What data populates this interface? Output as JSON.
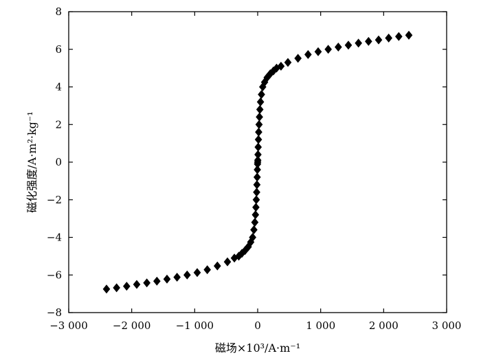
{
  "chart_data": {
    "type": "scatter",
    "title": "",
    "xlabel": "磁场×10³/A·m⁻¹",
    "ylabel": "磁化强度/A·m²·kg⁻¹",
    "xlim": [
      -3000,
      3000
    ],
    "ylim": [
      -8,
      8
    ],
    "x_ticks": [
      -3000,
      -2000,
      -1000,
      0,
      1000,
      2000,
      3000
    ],
    "x_tick_labels": [
      "−3 000",
      "−2 000",
      "−1 000",
      "0",
      "1 000",
      "2 000",
      "3 000"
    ],
    "y_ticks": [
      -8,
      -6,
      -4,
      -2,
      0,
      2,
      4,
      6,
      8
    ],
    "y_tick_labels": [
      "−8",
      "−6",
      "−4",
      "−2",
      "0",
      "2",
      "4",
      "6",
      "8"
    ],
    "grid": false,
    "legend": "none",
    "marker": "diamond",
    "marker_color": "#000000",
    "series": [
      {
        "x": [
          -2400,
          -2240,
          -2080,
          -1920,
          -1760,
          -1600,
          -1440,
          -1280,
          -1120,
          -960,
          -800,
          -640,
          -480,
          -370,
          -300,
          -250,
          -200,
          -150,
          -110,
          -80,
          -60,
          -45,
          -35,
          -28,
          -22,
          -16,
          -12,
          -8,
          -5,
          -2,
          0,
          2,
          5,
          8,
          12,
          16,
          22,
          28,
          35,
          45,
          60,
          80,
          110,
          150,
          200,
          250,
          300,
          370,
          480,
          640,
          800,
          960,
          1120,
          1280,
          1440,
          1600,
          1760,
          1920,
          2080,
          2240,
          2400
        ],
        "y": [
          -6.75,
          -6.68,
          -6.6,
          -6.5,
          -6.42,
          -6.33,
          -6.22,
          -6.12,
          -6.0,
          -5.87,
          -5.72,
          -5.52,
          -5.3,
          -5.1,
          -5.0,
          -4.85,
          -4.7,
          -4.5,
          -4.25,
          -4.0,
          -3.6,
          -3.2,
          -2.8,
          -2.4,
          -2.0,
          -1.6,
          -1.2,
          -0.8,
          -0.4,
          -0.1,
          0.0,
          0.1,
          0.4,
          0.8,
          1.2,
          1.6,
          2.0,
          2.4,
          2.8,
          3.2,
          3.6,
          4.0,
          4.25,
          4.5,
          4.7,
          4.85,
          5.0,
          5.1,
          5.3,
          5.52,
          5.72,
          5.87,
          6.0,
          6.12,
          6.22,
          6.33,
          6.42,
          6.5,
          6.6,
          6.68,
          6.75
        ]
      }
    ]
  }
}
